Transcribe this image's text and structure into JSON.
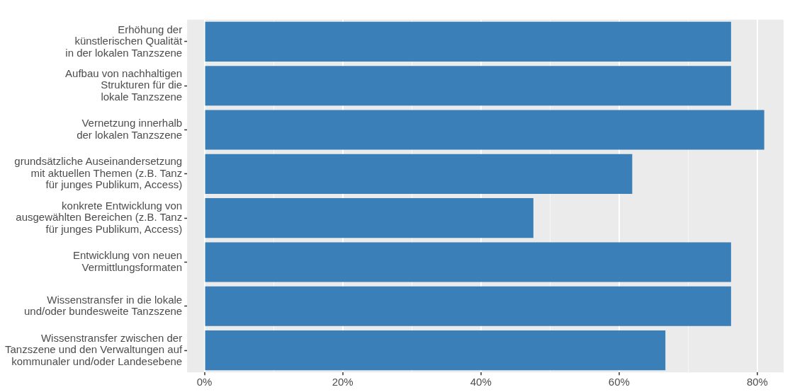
{
  "chart_data": {
    "type": "bar",
    "orientation": "horizontal",
    "categories": [
      "Erhöhung der\nkünstlerischen Qualität\nin der lokalen Tanzszene",
      "Aufbau von nachhaltigen\nStrukturen für die\nlokale Tanzszene",
      "Vernetzung innerhalb\nder lokalen Tanzszene",
      "grundsätzliche Auseinandersetzung\nmit aktuellen Themen (z.B. Tanz\nfür junges Publikum, Access)",
      "konkrete Entwicklung von\nausgewählten Bereichen (z.B. Tanz\nfür junges Publikum, Access)",
      "Entwicklung von neuen\nVermittlungsformaten",
      "Wissenstransfer in die lokale\nund/oder bundesweite Tanzszene",
      "Wissenstransfer zwischen der\nTanzszene und den Verwaltungen auf\nkommunaler und/oder Landesebene"
    ],
    "values": [
      76.2,
      76.2,
      81.0,
      61.9,
      47.6,
      76.2,
      76.2,
      66.7
    ],
    "color": "#3a7fb8",
    "xlim": [
      -2.5,
      83.8
    ],
    "xticks": [
      {
        "value": 0,
        "label": "0%"
      },
      {
        "value": 10,
        "label": null
      },
      {
        "value": 20,
        "label": "20%"
      },
      {
        "value": 30,
        "label": null
      },
      {
        "value": 40,
        "label": "40%"
      },
      {
        "value": 50,
        "label": null
      },
      {
        "value": 60,
        "label": "60%"
      },
      {
        "value": 70,
        "label": null
      },
      {
        "value": 80,
        "label": "80%"
      }
    ],
    "grid": "x"
  }
}
